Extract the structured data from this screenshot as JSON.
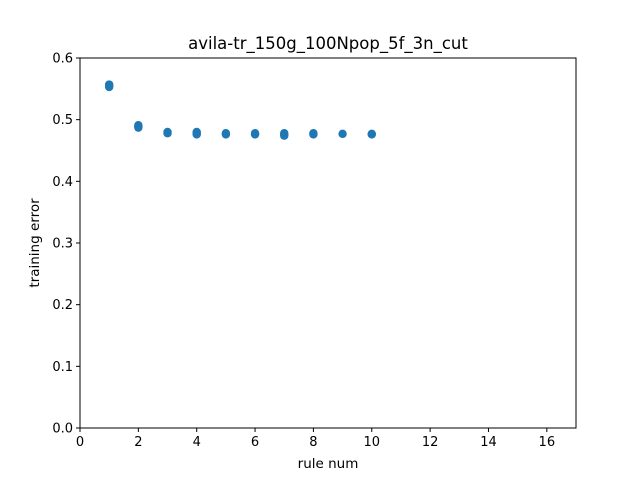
{
  "chart_data": {
    "type": "scatter",
    "title": "avila-tr_150g_100Npop_5f_3n_cut",
    "xlabel": "rule num",
    "ylabel": "training error",
    "xlim": [
      0,
      17
    ],
    "ylim": [
      0,
      0.6
    ],
    "xticks": [
      "0",
      "2",
      "4",
      "6",
      "8",
      "10",
      "12",
      "14",
      "16"
    ],
    "yticks": [
      "0.0",
      "0.1",
      "0.2",
      "0.3",
      "0.4",
      "0.5",
      "0.6"
    ],
    "grid": false,
    "legend": "none",
    "marker_color": "#1f77b4",
    "points": [
      {
        "x": 1,
        "y": 0.557
      },
      {
        "x": 1,
        "y": 0.555
      },
      {
        "x": 1,
        "y": 0.553
      },
      {
        "x": 2,
        "y": 0.491
      },
      {
        "x": 2,
        "y": 0.489
      },
      {
        "x": 2,
        "y": 0.487
      },
      {
        "x": 3,
        "y": 0.48
      },
      {
        "x": 3,
        "y": 0.478
      },
      {
        "x": 4,
        "y": 0.48
      },
      {
        "x": 4,
        "y": 0.478
      },
      {
        "x": 4,
        "y": 0.476
      },
      {
        "x": 5,
        "y": 0.478
      },
      {
        "x": 5,
        "y": 0.476
      },
      {
        "x": 6,
        "y": 0.478
      },
      {
        "x": 6,
        "y": 0.476
      },
      {
        "x": 7,
        "y": 0.478
      },
      {
        "x": 7,
        "y": 0.476
      },
      {
        "x": 7,
        "y": 0.474
      },
      {
        "x": 8,
        "y": 0.478
      },
      {
        "x": 8,
        "y": 0.476
      },
      {
        "x": 9,
        "y": 0.477
      },
      {
        "x": 10,
        "y": 0.477
      },
      {
        "x": 10,
        "y": 0.476
      }
    ]
  }
}
